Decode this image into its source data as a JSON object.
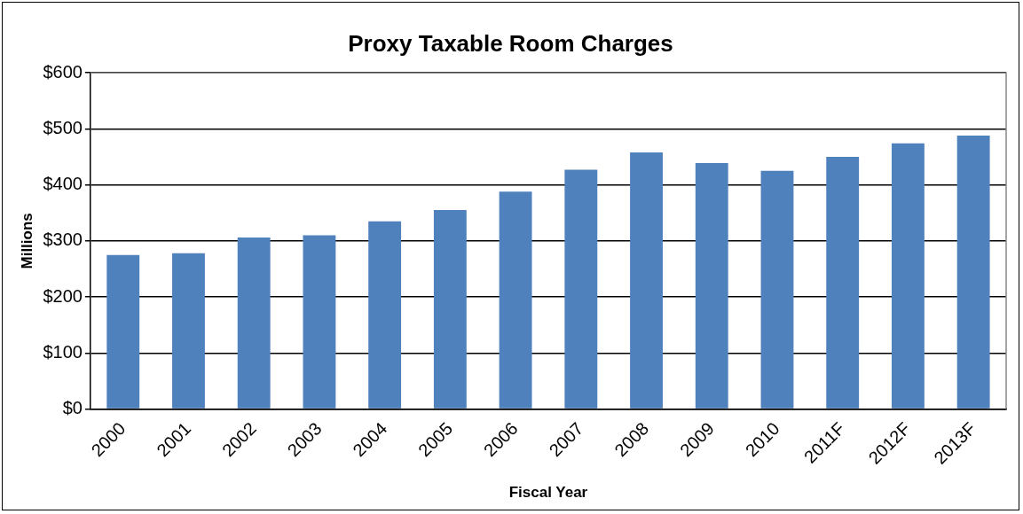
{
  "chart_data": {
    "type": "bar",
    "title": "Proxy Taxable Room Charges",
    "xlabel": "Fiscal Year",
    "ylabel": "Millions",
    "categories": [
      "2000",
      "2001",
      "2002",
      "2003",
      "2004",
      "2005",
      "2006",
      "2007",
      "2008",
      "2009",
      "2010",
      "2011F",
      "2012F",
      "2013F"
    ],
    "values": [
      275,
      278,
      306,
      310,
      335,
      355,
      388,
      427,
      458,
      439,
      425,
      450,
      474,
      488
    ],
    "color": "#4f81bd",
    "ylim": [
      0,
      600
    ],
    "yticks": [
      {
        "value": 0,
        "label": "$0"
      },
      {
        "value": 100,
        "label": "$100"
      },
      {
        "value": 200,
        "label": "$200"
      },
      {
        "value": 300,
        "label": "$300"
      },
      {
        "value": 400,
        "label": "$400"
      },
      {
        "value": 500,
        "label": "$500"
      },
      {
        "value": 600,
        "label": "$600"
      }
    ],
    "grid": "y",
    "legend": false
  }
}
